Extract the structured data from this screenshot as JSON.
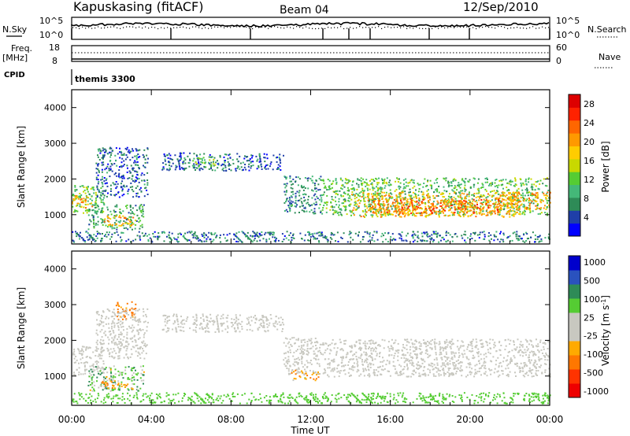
{
  "header": {
    "station": "Kapuskasing (fitACF)",
    "beam": "Beam 04",
    "date": "12/Sep/2010"
  },
  "status_panels": {
    "nsky_label": "N.Sky",
    "nsearch_label": "N.Search",
    "nsky_ticks": [
      "10^5",
      "10^0"
    ],
    "nsearch_ticks": [
      "10^5",
      "10^0"
    ],
    "freq_label_1": "Freq.",
    "freq_label_2": "[MHz]",
    "freq_ticks": [
      "18",
      "8"
    ],
    "nave_label": "Nave",
    "nave_ticks": [
      "60",
      "0"
    ],
    "cpid_label": "CPID",
    "cpid_value": "themis 3300"
  },
  "colors": {
    "power": [
      "#0000ff",
      "#1f3fa8",
      "#2e8b57",
      "#44b878",
      "#55cc33",
      "#c8d800",
      "#ffcc00",
      "#ff9900",
      "#ff6600",
      "#ff2200",
      "#dd0000"
    ],
    "velocity": [
      "#0000cc",
      "#2a52be",
      "#2e8b57",
      "#55cc33",
      "#c8c8c0",
      "#c8c8c0",
      "#ffaa00",
      "#ff7700",
      "#ff3300",
      "#ee0000"
    ]
  },
  "chart_data": [
    {
      "type": "heatmap",
      "panel": "power",
      "ylabel": "Slant Range [km]",
      "ylim": [
        180,
        4500
      ],
      "yticks": [
        "1000",
        "2000",
        "3000",
        "4000"
      ],
      "colorbar_label": "Power [dB]",
      "colorbar_ticks": [
        "4",
        "8",
        "12",
        "16",
        "20",
        "24",
        "28"
      ],
      "value_range": [
        0,
        30
      ],
      "grid": false,
      "regions": [
        {
          "t0": 0.0,
          "t1": 1.6,
          "r0": 1050,
          "r1": 1850,
          "v": 12
        },
        {
          "t0": 0.0,
          "t1": 1.0,
          "r0": 1200,
          "r1": 1550,
          "v": 20
        },
        {
          "t0": 0.8,
          "t1": 3.6,
          "r0": 600,
          "r1": 1300,
          "v": 9
        },
        {
          "t0": 1.6,
          "t1": 3.2,
          "r0": 700,
          "r1": 1000,
          "v": 20
        },
        {
          "t0": 1.2,
          "t1": 3.8,
          "r0": 1500,
          "r1": 2900,
          "v": 5
        },
        {
          "t0": 4.5,
          "t1": 10.6,
          "r0": 2250,
          "r1": 2750,
          "v": 5
        },
        {
          "t0": 6.0,
          "t1": 7.2,
          "r0": 2300,
          "r1": 2650,
          "v": 12
        },
        {
          "t0": 10.6,
          "t1": 12.5,
          "r0": 1050,
          "r1": 2100,
          "v": 7
        },
        {
          "t0": 12.5,
          "t1": 24.0,
          "r0": 1000,
          "r1": 2050,
          "v": 11
        },
        {
          "t0": 14.0,
          "t1": 22.5,
          "r0": 950,
          "r1": 1650,
          "v": 19
        },
        {
          "t0": 15.0,
          "t1": 21.5,
          "r0": 1050,
          "r1": 1450,
          "v": 23
        },
        {
          "t0": 21.5,
          "t1": 24.0,
          "r0": 1150,
          "r1": 1650,
          "v": 20
        },
        {
          "t0": 0.0,
          "t1": 24.0,
          "r0": 250,
          "r1": 550,
          "v": 6
        }
      ]
    },
    {
      "type": "heatmap",
      "panel": "velocity",
      "ylabel": "Slant Range [km]",
      "ylim": [
        180,
        4500
      ],
      "yticks": [
        "1000",
        "2000",
        "3000",
        "4000"
      ],
      "colorbar_label": "Velocity [m s^-1]",
      "colorbar_ticks": [
        "1000",
        "500",
        "100",
        "25",
        "-25",
        "-100",
        "-500",
        "-1000"
      ],
      "value_range": [
        -1200,
        1200
      ],
      "grid": false,
      "regions": [
        {
          "t0": 0.0,
          "t1": 1.6,
          "r0": 1050,
          "r1": 1850,
          "v": 0
        },
        {
          "t0": 0.8,
          "t1": 3.6,
          "r0": 600,
          "r1": 1300,
          "v": 60
        },
        {
          "t0": 1.4,
          "t1": 3.0,
          "r0": 650,
          "r1": 950,
          "v": -80
        },
        {
          "t0": 2.2,
          "t1": 3.2,
          "r0": 2600,
          "r1": 3100,
          "v": -150
        },
        {
          "t0": 1.2,
          "t1": 3.8,
          "r0": 1500,
          "r1": 2900,
          "v": 0
        },
        {
          "t0": 4.5,
          "t1": 10.6,
          "r0": 2250,
          "r1": 2750,
          "v": 0
        },
        {
          "t0": 10.6,
          "t1": 12.5,
          "r0": 1050,
          "r1": 2100,
          "v": 0
        },
        {
          "t0": 11.0,
          "t1": 12.4,
          "r0": 900,
          "r1": 1200,
          "v": -60
        },
        {
          "t0": 12.5,
          "t1": 24.0,
          "r0": 1000,
          "r1": 2050,
          "v": 0
        },
        {
          "t0": 0.0,
          "t1": 24.0,
          "r0": 250,
          "r1": 550,
          "v": 40
        }
      ]
    }
  ],
  "x_axis": {
    "label": "Time UT",
    "ticks": [
      "00:00",
      "04:00",
      "08:00",
      "12:00",
      "16:00",
      "20:00",
      "00:00"
    ],
    "range_hours": [
      0,
      24
    ]
  }
}
